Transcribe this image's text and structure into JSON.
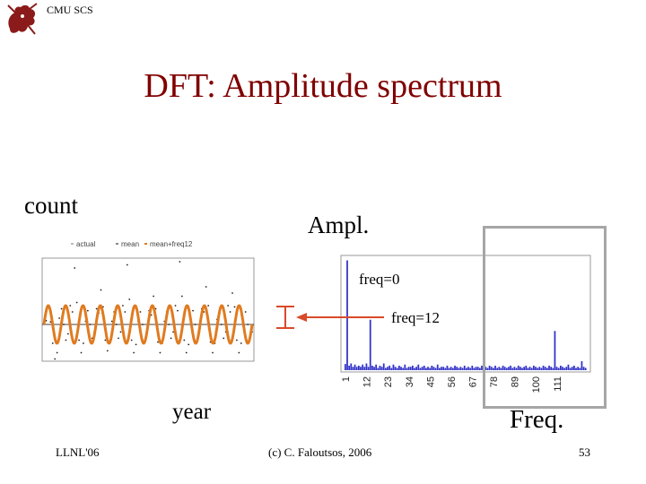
{
  "header": {
    "org_label": "CMU SCS"
  },
  "slide": {
    "title": "DFT: Amplitude spectrum",
    "count_label": "count",
    "ampl_label": "Ampl.",
    "year_label": "year",
    "freq_label": "Freq.",
    "annotation_freq0": "freq=0",
    "annotation_freq12": "freq=12"
  },
  "footer": {
    "left": "LLNL'06",
    "center": "(c) C. Faloutsos, 2006",
    "right": "53"
  },
  "colors": {
    "title": "#800000",
    "orange": "#e07b20",
    "blue": "#3030c8",
    "highlight": "#a6a6a6",
    "callout": "#d94a2a"
  },
  "icons": {
    "logo": "cmu-griffin-logo"
  },
  "chart_data": [
    {
      "type": "line",
      "legend": [
        "actual",
        "mean",
        "mean+freq12"
      ],
      "legend_placement": "top",
      "mean": 0,
      "series": [
        {
          "name": "actual",
          "style": "dotted",
          "values": [
            0.05,
            0.06,
            0.28,
            0.04,
            -0.3,
            -0.55,
            -0.45,
            0.1,
            0.25,
            0.0,
            -0.25,
            -0.15,
            0.3,
            0.2,
            0.9,
            0.35,
            -0.25,
            -0.45,
            -0.3,
            0.05,
            0.22,
            0.0,
            -0.22,
            -0.12,
            0.25,
            0.18,
            0.55,
            0.28,
            -0.25,
            -0.42,
            -0.3,
            0.05,
            0.2,
            0.0,
            -0.22,
            -0.12,
            0.3,
            0.2,
            0.95,
            0.4,
            -0.25,
            -0.45,
            -0.32,
            0.05,
            0.2,
            0.0,
            -0.25,
            -0.15,
            0.22,
            0.15,
            0.45,
            0.25,
            -0.28,
            -0.45,
            -0.3,
            0.05,
            0.2,
            0.0,
            -0.22,
            -0.12,
            0.3,
            0.22,
            1.0,
            0.45,
            -0.25,
            -0.45,
            -0.32,
            0.05,
            0.22,
            0.0,
            -0.25,
            -0.12,
            0.25,
            0.2,
            0.6,
            0.3,
            -0.28,
            -0.45,
            -0.3,
            0.08,
            0.2,
            0.0,
            -0.22,
            -0.12,
            0.3,
            0.2,
            0.5,
            0.28,
            -0.25,
            -0.45,
            -0.3,
            0.05,
            0.2,
            0.0,
            -0.22,
            -0.12
          ]
        },
        {
          "name": "mean+freq12",
          "amplitude": 0.3,
          "cycles": 12
        }
      ]
    },
    {
      "type": "bar",
      "x_ticks": [
        "1",
        "12",
        "23",
        "34",
        "45",
        "56",
        "67",
        "78",
        "89",
        "100",
        "111"
      ],
      "values": [
        0.055,
        0.98,
        0.04,
        0.06,
        0.03,
        0.05,
        0.03,
        0.04,
        0.03,
        0.05,
        0.03,
        0.06,
        0.03,
        0.45,
        0.04,
        0.03,
        0.05,
        0.02,
        0.04,
        0.03,
        0.06,
        0.02,
        0.03,
        0.04,
        0.02,
        0.05,
        0.03,
        0.02,
        0.04,
        0.03,
        0.02,
        0.05,
        0.02,
        0.03,
        0.03,
        0.04,
        0.02,
        0.03,
        0.05,
        0.02,
        0.03,
        0.04,
        0.02,
        0.03,
        0.02,
        0.04,
        0.03,
        0.02,
        0.05,
        0.02,
        0.03,
        0.03,
        0.02,
        0.04,
        0.02,
        0.03,
        0.02,
        0.04,
        0.03,
        0.02,
        0.03,
        0.02,
        0.04,
        0.02,
        0.03,
        0.02,
        0.04,
        0.02,
        0.03,
        0.03,
        0.02,
        0.04,
        0.02,
        0.03,
        0.02,
        0.04,
        0.03,
        0.02,
        0.04,
        0.02,
        0.03,
        0.02,
        0.04,
        0.03,
        0.02,
        0.03,
        0.04,
        0.02,
        0.03,
        0.02,
        0.04,
        0.03,
        0.02,
        0.03,
        0.04,
        0.02,
        0.03,
        0.02,
        0.04,
        0.03,
        0.02,
        0.03,
        0.02,
        0.04,
        0.03,
        0.02,
        0.04,
        0.03,
        0.02,
        0.35,
        0.03,
        0.02,
        0.04,
        0.03,
        0.02,
        0.03,
        0.05,
        0.02,
        0.03,
        0.04,
        0.02,
        0.03,
        0.02,
        0.08,
        0.03,
        0.02
      ],
      "ylim": [
        0,
        1
      ]
    }
  ]
}
